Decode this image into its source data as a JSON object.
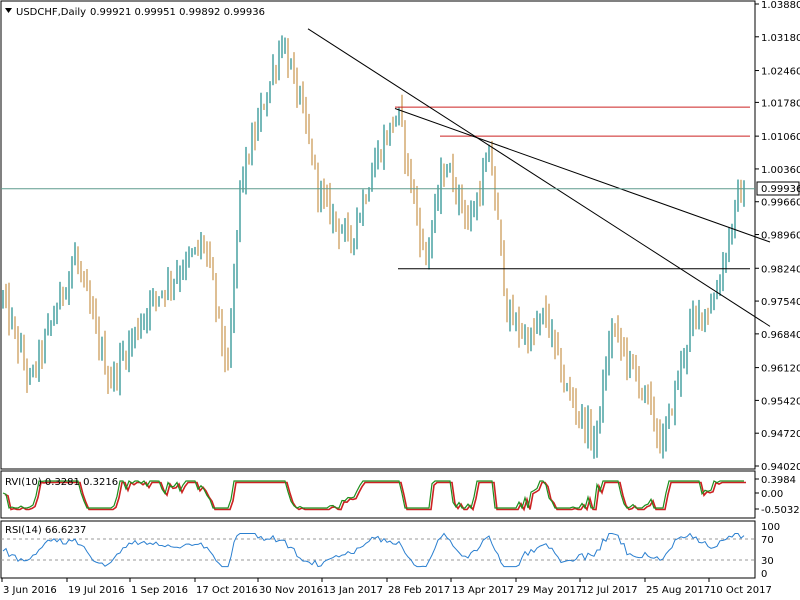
{
  "header": {
    "symbol": "USDCHF,Daily",
    "ohlc": "0.99921 0.99951 0.99892 0.99936"
  },
  "price_axis": {
    "ticks": [
      "1.03880",
      "1.03180",
      "1.02460",
      "1.01780",
      "1.01060",
      "1.00360",
      "0.99660",
      "0.98960",
      "0.98240",
      "0.97540",
      "0.96840",
      "0.96120",
      "0.95420",
      "0.94720",
      "0.94020"
    ],
    "current_label": "0.99936"
  },
  "rvi_panel": {
    "title": "RVI(10) 0.3281 0.3216",
    "ticks": [
      "0.3984",
      "0.00",
      "-0.5032"
    ]
  },
  "rsi_panel": {
    "title": "RSI(14) 66.6237",
    "ticks": [
      "100",
      "70",
      "30",
      "0"
    ]
  },
  "date_axis": {
    "ticks": [
      "3 Jun 2016",
      "19 Jul 2016",
      "1 Sep 2016",
      "17 Oct 2016",
      "30 Nov 2016",
      "13 Jan 2017",
      "28 Feb 2017",
      "13 Apr 2017",
      "29 May 2017",
      "12 Jul 2017",
      "25 Aug 2017",
      "10 Oct 2017"
    ]
  },
  "colors": {
    "up": "#1b8a8a",
    "down": "#c8944c",
    "rvi_main": "#1e8f1e",
    "rvi_signal": "#cc2222",
    "rsi": "#2a7fd0",
    "resistance": "#cc2222",
    "trendline": "#000000",
    "current_price_line": "#5f9b8e"
  },
  "chart_data": {
    "type": "candlestick",
    "symbol": "USDCHF",
    "timeframe": "Daily",
    "last_bar": {
      "open": 0.99921,
      "high": 0.99951,
      "low": 0.99892,
      "close": 0.99936
    },
    "ylim": [
      0.9402,
      1.0388
    ],
    "current_price": 0.99936,
    "close_path": [
      {
        "date": "3 Jun 2016",
        "close": 0.975
      },
      {
        "date": "19 Jul 2016",
        "close": 0.985
      },
      {
        "date": "1 Sep 2016",
        "close": 0.98
      },
      {
        "date": "17 Oct 2016",
        "close": 0.995
      },
      {
        "date": "30 Nov 2016",
        "close": 1.025
      },
      {
        "date": "13 Jan 2017",
        "close": 1.0
      },
      {
        "date": "28 Feb 2017",
        "close": 1.01
      },
      {
        "date": "13 Apr 2017",
        "close": 1.005
      },
      {
        "date": "29 May 2017",
        "close": 0.97
      },
      {
        "date": "12 Jul 2017",
        "close": 0.955
      },
      {
        "date": "25 Aug 2017",
        "close": 0.95
      },
      {
        "date": "10 Oct 2017",
        "close": 0.985
      }
    ],
    "horizontal_levels": [
      {
        "price": 1.0168,
        "color": "red"
      },
      {
        "price": 1.0106,
        "color": "red"
      },
      {
        "price": 0.9823,
        "color": "black"
      }
    ],
    "trendlines": [
      {
        "from": {
          "date": "30 Nov 2016",
          "price": 1.0335
        },
        "to": {
          "date": "10 Oct 2017",
          "price": 0.9745
        }
      },
      {
        "from": {
          "date": "28 Feb 2017",
          "price": 1.0165
        },
        "to": {
          "date": "10 Oct 2017",
          "price": 0.9905
        }
      }
    ],
    "indicators": [
      {
        "name": "RVI(10)",
        "values": [
          0.3281,
          0.3216
        ],
        "range": [
          -0.5032,
          0.3984
        ]
      },
      {
        "name": "RSI(14)",
        "value": 66.6237,
        "levels": [
          70,
          30
        ],
        "range": [
          0,
          100
        ]
      }
    ]
  }
}
